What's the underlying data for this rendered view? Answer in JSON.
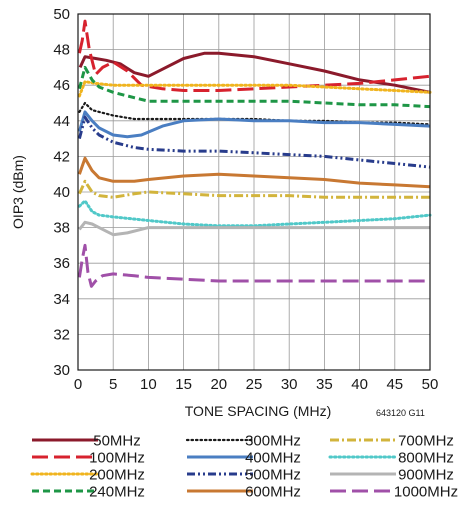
{
  "chart_data": {
    "type": "line",
    "xlabel": "TONE SPACING (MHz)",
    "ylabel": "OIP3 (dBm)",
    "note": "643120 G11",
    "xlim": [
      0,
      50
    ],
    "ylim": [
      30,
      50
    ],
    "xticks": [
      0,
      5,
      10,
      15,
      20,
      25,
      30,
      35,
      40,
      45,
      50
    ],
    "yticks": [
      30,
      32,
      34,
      36,
      38,
      40,
      42,
      44,
      46,
      48,
      50
    ],
    "grid": true,
    "legend_position": "bottom",
    "series": [
      {
        "name": "50MHz",
        "color": "#8b1a2b",
        "dash": "solid",
        "points": [
          [
            0.3,
            47.0
          ],
          [
            1,
            47.6
          ],
          [
            2.5,
            47.5
          ],
          [
            4,
            47.4
          ],
          [
            6,
            47.2
          ],
          [
            8,
            46.7
          ],
          [
            10,
            46.5
          ],
          [
            12,
            46.9
          ],
          [
            15,
            47.5
          ],
          [
            18,
            47.8
          ],
          [
            20,
            47.8
          ],
          [
            25,
            47.6
          ],
          [
            30,
            47.2
          ],
          [
            35,
            46.8
          ],
          [
            40,
            46.3
          ],
          [
            45,
            46.0
          ],
          [
            50,
            45.6
          ]
        ]
      },
      {
        "name": "100MHz",
        "color": "#d7222e",
        "dash": "longdash",
        "points": [
          [
            0.2,
            47.8
          ],
          [
            0.6,
            48.5
          ],
          [
            1,
            49.6
          ],
          [
            1.6,
            48.0
          ],
          [
            2.5,
            46.6
          ],
          [
            3.5,
            47.0
          ],
          [
            5,
            47.3
          ],
          [
            7,
            46.8
          ],
          [
            9,
            46.0
          ],
          [
            12,
            45.8
          ],
          [
            15,
            45.7
          ],
          [
            20,
            45.7
          ],
          [
            25,
            45.8
          ],
          [
            30,
            45.9
          ],
          [
            35,
            46.0
          ],
          [
            40,
            46.1
          ],
          [
            45,
            46.3
          ],
          [
            50,
            46.5
          ]
        ]
      },
      {
        "name": "200MHz",
        "color": "#f0b41e",
        "dash": "dot",
        "points": [
          [
            0.2,
            45.4
          ],
          [
            1,
            46.2
          ],
          [
            2.5,
            46.1
          ],
          [
            5,
            46.0
          ],
          [
            10,
            46.0
          ],
          [
            15,
            46.0
          ],
          [
            20,
            46.0
          ],
          [
            25,
            46.0
          ],
          [
            30,
            46.0
          ],
          [
            35,
            45.9
          ],
          [
            40,
            45.8
          ],
          [
            45,
            45.7
          ],
          [
            50,
            45.6
          ]
        ]
      },
      {
        "name": "240MHz",
        "color": "#1e9646",
        "dash": "dash",
        "points": [
          [
            0.2,
            45.8
          ],
          [
            1,
            47.0
          ],
          [
            2,
            46.3
          ],
          [
            3,
            45.9
          ],
          [
            5,
            45.6
          ],
          [
            8,
            45.3
          ],
          [
            10,
            45.1
          ],
          [
            15,
            45.1
          ],
          [
            20,
            45.1
          ],
          [
            25,
            45.1
          ],
          [
            30,
            45.1
          ],
          [
            35,
            45.0
          ],
          [
            40,
            44.9
          ],
          [
            45,
            44.9
          ],
          [
            50,
            44.8
          ]
        ]
      },
      {
        "name": "300MHz",
        "color": "#1a1a1a",
        "dash": "finedot",
        "points": [
          [
            0.2,
            44.5
          ],
          [
            1,
            45.0
          ],
          [
            2,
            44.6
          ],
          [
            3,
            44.5
          ],
          [
            5,
            44.3
          ],
          [
            8,
            44.1
          ],
          [
            10,
            44.1
          ],
          [
            15,
            44.1
          ],
          [
            20,
            44.1
          ],
          [
            25,
            44.1
          ],
          [
            30,
            44.0
          ],
          [
            35,
            44.0
          ],
          [
            40,
            43.9
          ],
          [
            45,
            43.9
          ],
          [
            50,
            43.8
          ]
        ]
      },
      {
        "name": "400MHz",
        "color": "#4a7ec2",
        "dash": "solid",
        "points": [
          [
            0.2,
            43.4
          ],
          [
            1,
            44.5
          ],
          [
            2,
            44.0
          ],
          [
            3,
            43.6
          ],
          [
            5,
            43.2
          ],
          [
            7,
            43.1
          ],
          [
            9,
            43.2
          ],
          [
            12,
            43.7
          ],
          [
            15,
            44.0
          ],
          [
            20,
            44.1
          ],
          [
            25,
            44.0
          ],
          [
            30,
            44.0
          ],
          [
            35,
            43.9
          ],
          [
            40,
            43.9
          ],
          [
            45,
            43.8
          ],
          [
            50,
            43.7
          ]
        ]
      },
      {
        "name": "500MHz",
        "color": "#283c8c",
        "dash": "dashdotdot",
        "points": [
          [
            0.2,
            43.0
          ],
          [
            1,
            44.2
          ],
          [
            2,
            43.6
          ],
          [
            3,
            43.2
          ],
          [
            5,
            42.8
          ],
          [
            8,
            42.5
          ],
          [
            10,
            42.4
          ],
          [
            15,
            42.3
          ],
          [
            20,
            42.3
          ],
          [
            25,
            42.2
          ],
          [
            30,
            42.1
          ],
          [
            35,
            42.0
          ],
          [
            40,
            41.8
          ],
          [
            45,
            41.6
          ],
          [
            50,
            41.4
          ]
        ]
      },
      {
        "name": "600MHz",
        "color": "#c87832",
        "dash": "solid",
        "points": [
          [
            0.2,
            41.0
          ],
          [
            1,
            41.9
          ],
          [
            2,
            41.2
          ],
          [
            3,
            40.8
          ],
          [
            5,
            40.6
          ],
          [
            8,
            40.6
          ],
          [
            10,
            40.7
          ],
          [
            15,
            40.9
          ],
          [
            20,
            41.0
          ],
          [
            25,
            40.9
          ],
          [
            30,
            40.8
          ],
          [
            35,
            40.7
          ],
          [
            40,
            40.5
          ],
          [
            45,
            40.4
          ],
          [
            50,
            40.3
          ]
        ]
      },
      {
        "name": "700MHz",
        "color": "#d2b43c",
        "dash": "dashdot",
        "points": [
          [
            0.2,
            39.9
          ],
          [
            1,
            40.6
          ],
          [
            2,
            40.0
          ],
          [
            3,
            39.8
          ],
          [
            5,
            39.7
          ],
          [
            8,
            39.9
          ],
          [
            10,
            40.0
          ],
          [
            15,
            39.9
          ],
          [
            20,
            39.8
          ],
          [
            25,
            39.8
          ],
          [
            30,
            39.8
          ],
          [
            35,
            39.7
          ],
          [
            40,
            39.7
          ],
          [
            45,
            39.7
          ],
          [
            50,
            39.7
          ]
        ]
      },
      {
        "name": "800MHz",
        "color": "#50c8c8",
        "dash": "dot",
        "points": [
          [
            0.2,
            39.2
          ],
          [
            1,
            39.5
          ],
          [
            2,
            38.9
          ],
          [
            3,
            38.7
          ],
          [
            5,
            38.6
          ],
          [
            10,
            38.4
          ],
          [
            15,
            38.2
          ],
          [
            20,
            38.1
          ],
          [
            25,
            38.1
          ],
          [
            30,
            38.2
          ],
          [
            35,
            38.3
          ],
          [
            40,
            38.4
          ],
          [
            45,
            38.5
          ],
          [
            50,
            38.7
          ]
        ]
      },
      {
        "name": "900MHz",
        "color": "#b4b4b4",
        "dash": "solid",
        "points": [
          [
            0.2,
            37.9
          ],
          [
            1,
            38.3
          ],
          [
            2,
            38.2
          ],
          [
            3,
            38.0
          ],
          [
            4,
            37.8
          ],
          [
            5,
            37.6
          ],
          [
            7,
            37.7
          ],
          [
            10,
            38.0
          ],
          [
            15,
            38.0
          ],
          [
            20,
            38.0
          ],
          [
            25,
            38.0
          ],
          [
            30,
            38.0
          ],
          [
            35,
            38.0
          ],
          [
            40,
            38.0
          ],
          [
            45,
            38.0
          ],
          [
            50,
            38.0
          ]
        ]
      },
      {
        "name": "1000MHz",
        "color": "#a050a8",
        "dash": "longdash",
        "points": [
          [
            0.2,
            35.2
          ],
          [
            0.6,
            36.2
          ],
          [
            1,
            37.0
          ],
          [
            1.4,
            35.5
          ],
          [
            1.9,
            34.7
          ],
          [
            2.5,
            35.0
          ],
          [
            3.5,
            35.3
          ],
          [
            5,
            35.4
          ],
          [
            8,
            35.3
          ],
          [
            10,
            35.2
          ],
          [
            15,
            35.1
          ],
          [
            20,
            35.0
          ],
          [
            25,
            35.0
          ],
          [
            30,
            35.0
          ],
          [
            35,
            35.0
          ],
          [
            40,
            35.0
          ],
          [
            45,
            35.0
          ],
          [
            50,
            35.0
          ]
        ]
      }
    ]
  }
}
